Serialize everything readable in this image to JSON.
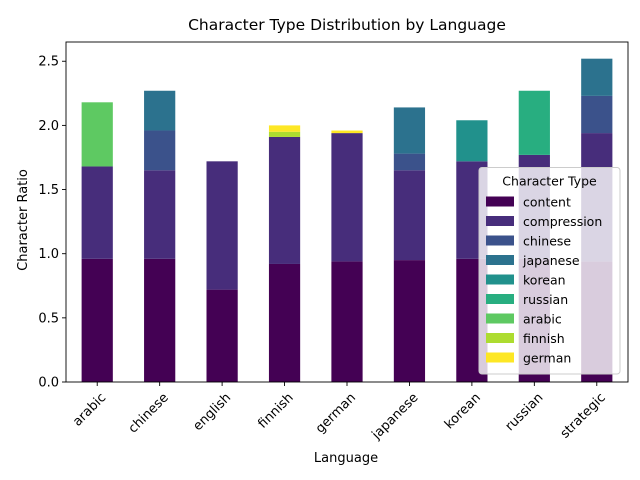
{
  "chart_data": {
    "type": "bar",
    "stacked": true,
    "title": "Character Type Distribution by Language",
    "xlabel": "Language",
    "ylabel": "Character Ratio",
    "ylim": [
      0,
      2.65
    ],
    "yticks": [
      "0.0",
      "0.5",
      "1.0",
      "1.5",
      "2.0",
      "2.5"
    ],
    "ytick_values": [
      0,
      0.5,
      1.0,
      1.5,
      2.0,
      2.5
    ],
    "categories": [
      "arabic",
      "chinese",
      "english",
      "finnish",
      "german",
      "japanese",
      "korean",
      "russian",
      "strategic"
    ],
    "legend": {
      "title": "Character Type",
      "placement": "lower right"
    },
    "series": [
      {
        "name": "content",
        "color": "#440154",
        "values": [
          0.96,
          0.96,
          0.72,
          0.92,
          0.94,
          0.95,
          0.96,
          0.96,
          0.94
        ]
      },
      {
        "name": "compression",
        "color": "#472d7b",
        "values": [
          0.72,
          0.69,
          1.0,
          0.99,
          1.0,
          0.7,
          0.76,
          0.81,
          1.0
        ]
      },
      {
        "name": "chinese",
        "color": "#3b528b",
        "values": [
          0,
          0.31,
          0,
          0,
          0,
          0.13,
          0,
          0,
          0.29
        ]
      },
      {
        "name": "japanese",
        "color": "#2c728e",
        "values": [
          0,
          0.31,
          0,
          0,
          0,
          0.36,
          0,
          0,
          0.29
        ]
      },
      {
        "name": "korean",
        "color": "#21918c",
        "values": [
          0,
          0,
          0,
          0,
          0,
          0,
          0.32,
          0,
          0
        ]
      },
      {
        "name": "russian",
        "color": "#28ae80",
        "values": [
          0,
          0,
          0,
          0,
          0,
          0,
          0,
          0.5,
          0
        ]
      },
      {
        "name": "arabic",
        "color": "#5ec962",
        "values": [
          0.5,
          0,
          0,
          0,
          0,
          0,
          0,
          0,
          0
        ]
      },
      {
        "name": "finnish",
        "color": "#addc30",
        "values": [
          0,
          0,
          0,
          0.04,
          0,
          0,
          0,
          0,
          0
        ]
      },
      {
        "name": "german",
        "color": "#fde725",
        "values": [
          0,
          0,
          0,
          0.05,
          0.02,
          0,
          0,
          0,
          0
        ]
      }
    ]
  }
}
